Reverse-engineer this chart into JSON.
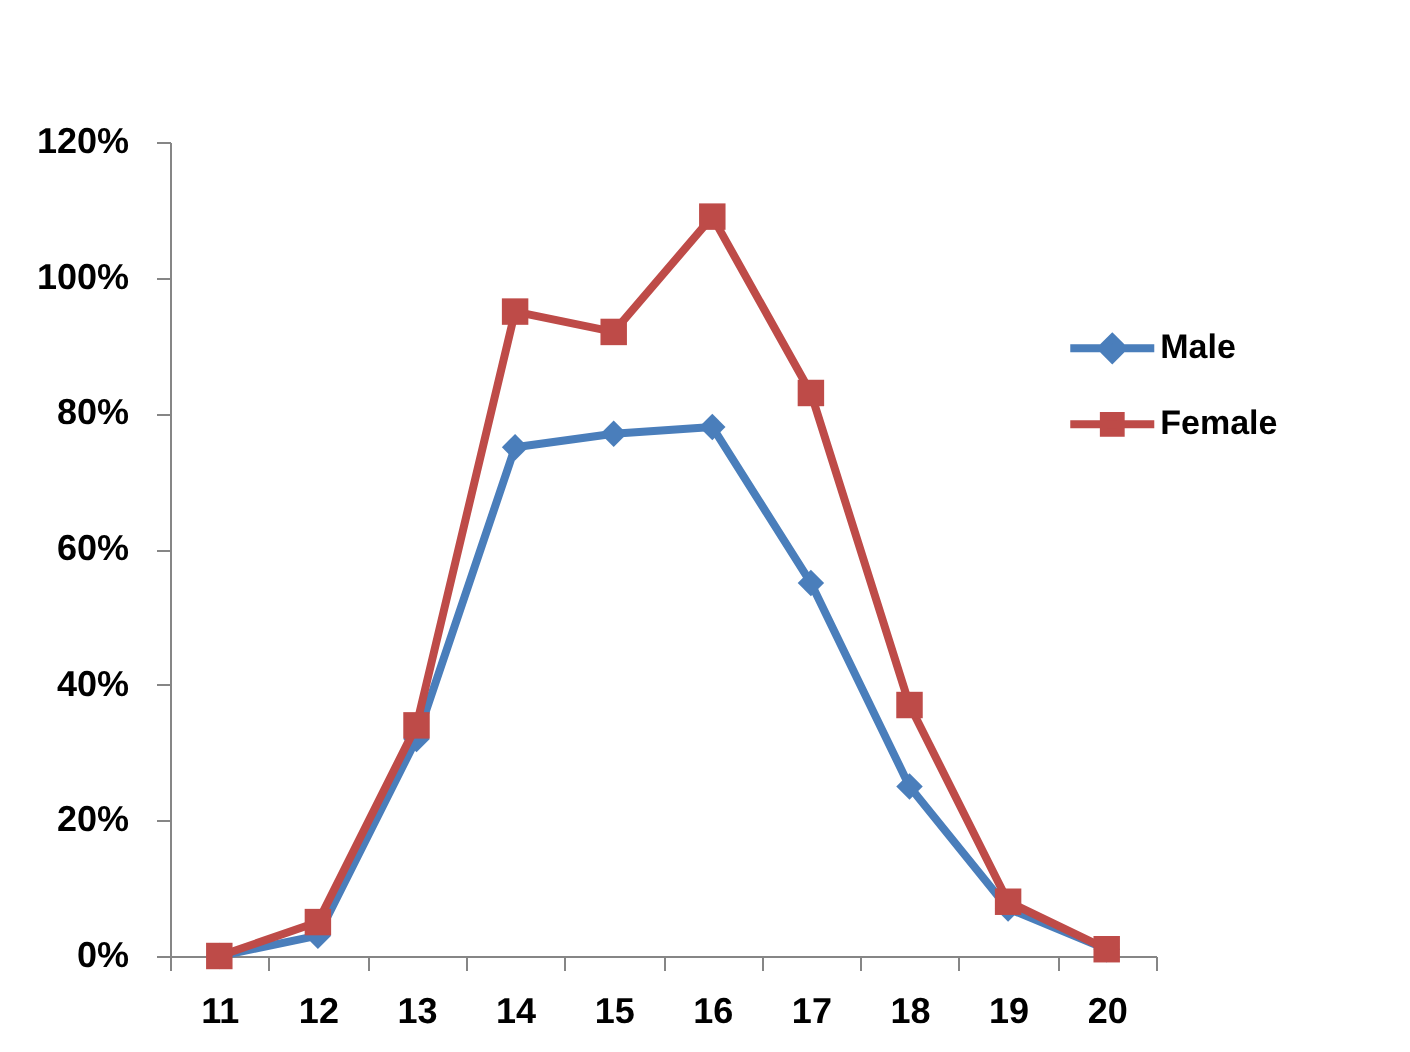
{
  "chart_data": {
    "type": "line",
    "categories": [
      "11",
      "12",
      "13",
      "14",
      "15",
      "16",
      "17",
      "18",
      "19",
      "20"
    ],
    "series": [
      {
        "name": "Male",
        "color": "#4a7ebb",
        "marker": "diamond",
        "values": [
          0,
          3,
          32,
          75,
          77,
          78,
          55,
          25,
          7,
          1
        ]
      },
      {
        "name": "Female",
        "color": "#be4b48",
        "marker": "square",
        "values": [
          0,
          5,
          34,
          95,
          92,
          109,
          83,
          37,
          8,
          1
        ]
      }
    ],
    "ylim": [
      0,
      120
    ],
    "yticks": [
      {
        "value": 0,
        "label": "0%"
      },
      {
        "value": 20,
        "label": "20%"
      },
      {
        "value": 40,
        "label": "40%"
      },
      {
        "value": 60,
        "label": "60%"
      },
      {
        "value": 80,
        "label": "80%"
      },
      {
        "value": 100,
        "label": "100%"
      },
      {
        "value": 120,
        "label": "120%"
      }
    ],
    "legend": "right"
  }
}
